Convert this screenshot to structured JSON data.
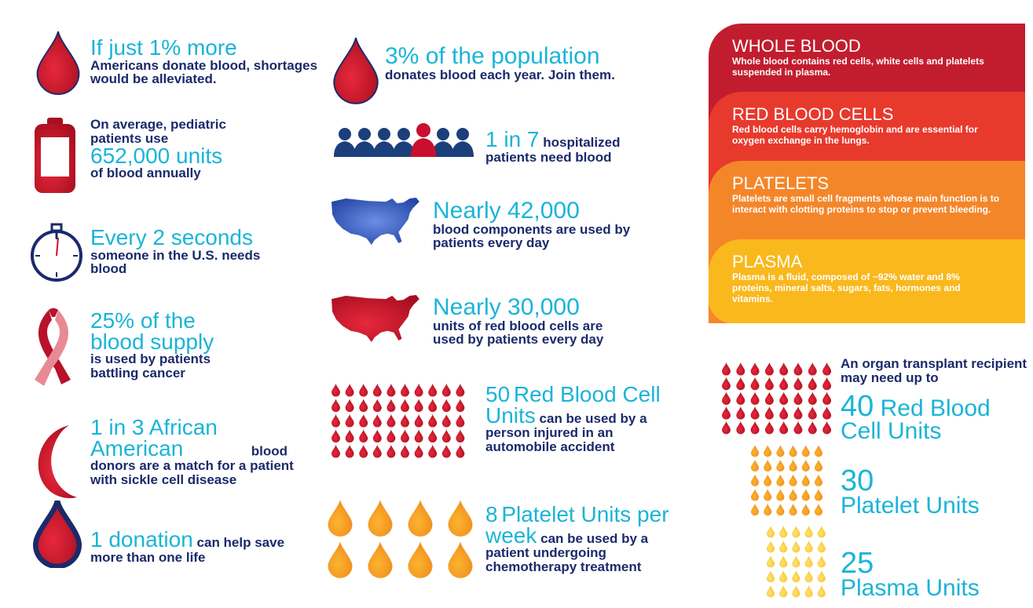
{
  "facts_left": [
    {
      "headline": "If just 1% more",
      "text": "Americans donate blood, shortages would be alleviated."
    },
    {
      "pre": "On average, pediatric patients use",
      "headline": "652,000 units",
      "text": "of blood annually"
    },
    {
      "headline": "Every 2 seconds",
      "text": "someone in the U.S. needs blood"
    },
    {
      "headline": "25% of the blood supply",
      "text": "is used by patients battling cancer"
    },
    {
      "headline": "1 in 3 African American",
      "text": "blood donors are a match for a patient with sickle cell disease"
    },
    {
      "headline": "1 donation",
      "text": "can help save more than one life"
    }
  ],
  "facts_middle": [
    {
      "headline": "3% of the population",
      "text": "donates blood each year. Join them."
    },
    {
      "headline": "1 in 7",
      "text": "hospitalized patients need blood"
    },
    {
      "headline": "Nearly 42,000",
      "text": "blood components are used by patients every day"
    },
    {
      "headline": "Nearly 30,000",
      "text": "units of red blood cells are used by patients every day"
    },
    {
      "count": 50,
      "headline": "Red Blood Cell Units",
      "text": "can be used by a person injured in an automobile accident"
    },
    {
      "count": 8,
      "headline": "Platelet Units per week",
      "text": "can be used by a patient undergoing chemotherapy treatment"
    }
  ],
  "components": [
    {
      "title": "WHOLE BLOOD",
      "text": "Whole blood contains red cells, white cells and platelets suspended in plasma."
    },
    {
      "title": "RED BLOOD CELLS",
      "text": "Red blood cells carry hemoglobin and are essential for oxygen exchange in the lungs."
    },
    {
      "title": "PLATELETS",
      "text": "Platelets are small cell fragments whose main function is to interact with clotting proteins to stop or prevent bleeding."
    },
    {
      "title": "PLASMA",
      "text": "Plasma is a fluid, composed of ~92% water and 8% proteins, mineral salts, sugars, fats, hormones and vitamins."
    }
  ],
  "transplant": {
    "intro": "An organ transplant recipient may need up to",
    "items": [
      {
        "count": 40,
        "label": "Red Blood Cell Units"
      },
      {
        "count": 30,
        "label": "Platelet Units"
      },
      {
        "count": 25,
        "label": "Plasma Units"
      }
    ]
  }
}
